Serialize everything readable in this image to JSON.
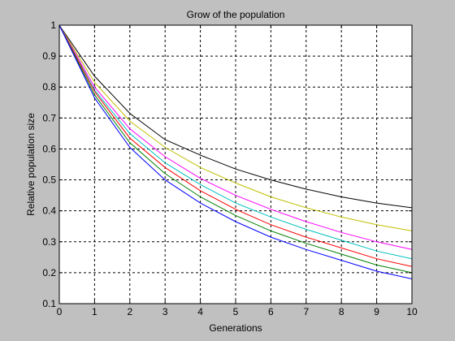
{
  "chart_data": {
    "type": "line",
    "title": "Grow of the population",
    "xlabel": "Generations",
    "ylabel": "Relative population size",
    "xlim": [
      0,
      10
    ],
    "ylim": [
      0.1,
      1
    ],
    "xticks": [
      "0",
      "1",
      "2",
      "3",
      "4",
      "5",
      "6",
      "7",
      "8",
      "9",
      "10"
    ],
    "yticks": [
      "0.1",
      "0.2",
      "0.3",
      "0.4",
      "0.5",
      "0.6",
      "0.7",
      "0.8",
      "0.9",
      "1"
    ],
    "grid": true,
    "x": [
      0,
      1,
      2,
      3,
      4,
      5,
      6,
      7,
      8,
      9,
      10
    ],
    "series": [
      {
        "color": "#000000",
        "values": [
          1.0,
          0.835,
          0.715,
          0.63,
          0.58,
          0.535,
          0.5,
          0.47,
          0.445,
          0.425,
          0.41
        ]
      },
      {
        "color": "#bfbf00",
        "values": [
          1.0,
          0.815,
          0.69,
          0.605,
          0.54,
          0.49,
          0.445,
          0.41,
          0.38,
          0.355,
          0.335
        ]
      },
      {
        "color": "#ff00ff",
        "values": [
          1.0,
          0.8,
          0.665,
          0.575,
          0.505,
          0.45,
          0.405,
          0.365,
          0.33,
          0.3,
          0.275
        ]
      },
      {
        "color": "#00bfbf",
        "values": [
          1.0,
          0.79,
          0.65,
          0.555,
          0.485,
          0.425,
          0.38,
          0.34,
          0.305,
          0.27,
          0.245
        ]
      },
      {
        "color": "#ff0000",
        "values": [
          1.0,
          0.785,
          0.635,
          0.54,
          0.465,
          0.405,
          0.355,
          0.315,
          0.28,
          0.245,
          0.22
        ]
      },
      {
        "color": "#008000",
        "values": [
          1.0,
          0.775,
          0.62,
          0.52,
          0.445,
          0.385,
          0.335,
          0.295,
          0.26,
          0.225,
          0.2
        ]
      },
      {
        "color": "#0000ff",
        "values": [
          1.0,
          0.765,
          0.605,
          0.5,
          0.425,
          0.365,
          0.315,
          0.275,
          0.24,
          0.205,
          0.18
        ]
      }
    ]
  }
}
